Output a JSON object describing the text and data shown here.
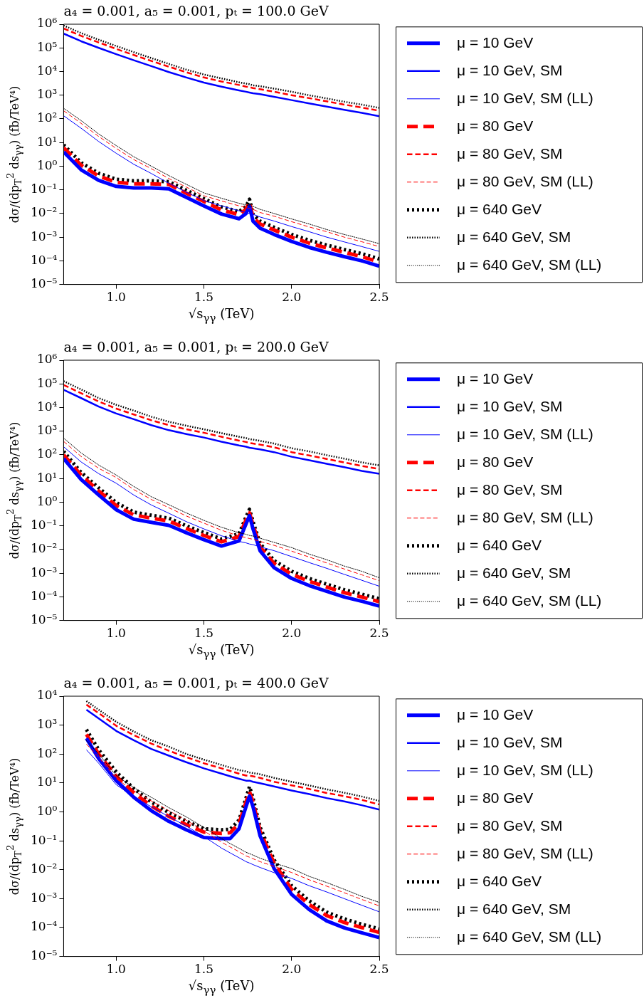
{
  "chart_data": [
    {
      "type": "line",
      "title": "a₄ = 0.001, a₅ = 0.001, pₜ = 100.0 GeV",
      "xlabel": "√s$_{γγ}$ (TeV)",
      "ylabel": "dσ/(dp$_{T}$$^{2}$ ds$_{γγ}$) (fb/TeV⁴)",
      "log": "y",
      "legend": "right",
      "marker": "none",
      "xlim": [
        0.7,
        2.5
      ],
      "xticks": [
        {
          "value": 1,
          "label": "1.0"
        },
        {
          "value": 1.5,
          "label": "1.5"
        },
        {
          "value": 2,
          "label": "2.0"
        },
        {
          "value": 2.5,
          "label": "2.5"
        }
      ],
      "ylim": [
        1e-05,
        1000000.0
      ],
      "yticks": [
        {
          "value": 1e-05,
          "label": "10⁻⁵"
        },
        {
          "value": 0.0001,
          "label": "10⁻⁴"
        },
        {
          "value": 0.001,
          "label": "10⁻³"
        },
        {
          "value": 0.01,
          "label": "10⁻²"
        },
        {
          "value": 0.1,
          "label": "10⁻¹"
        },
        {
          "value": 1,
          "label": "10⁰"
        },
        {
          "value": 10,
          "label": "10¹"
        },
        {
          "value": 100,
          "label": "10²"
        },
        {
          "value": 1000,
          "label": "10³"
        },
        {
          "value": 10000,
          "label": "10⁴"
        },
        {
          "value": 100000,
          "label": "10⁵"
        },
        {
          "value": 1000000,
          "label": "10⁶"
        }
      ],
      "x": [
        0.7,
        0.8,
        0.9,
        1.0,
        1.1,
        1.2,
        1.3,
        1.4,
        1.5,
        1.6,
        1.7,
        1.74,
        1.76,
        1.78,
        1.82,
        1.9,
        2.0,
        2.1,
        2.2,
        2.3,
        2.4,
        2.5
      ],
      "series": [
        {
          "name": "μ = 10 GeV",
          "color": "#0000ff",
          "line_style": "solid",
          "values": [
            4,
            0.7,
            0.25,
            0.14,
            0.12,
            0.12,
            0.11,
            0.048,
            0.021,
            0.0095,
            0.006,
            0.01,
            0.02,
            0.0047,
            0.0024,
            0.0013,
            0.00066,
            0.00037,
            0.00023,
            0.00015,
            0.0001,
            5.9e-05
          ]
        },
        {
          "name": "μ = 10 GeV, SM",
          "color": "#0000ff",
          "line_style": "solid",
          "values": [
            400000.0,
            190000.0,
            100000.0,
            54000.0,
            30000.0,
            17000.0,
            9500.0,
            5600.0,
            3400.0,
            2300.0,
            1600.0,
            1400.0,
            1300.0,
            1200.0,
            1100.0,
            850,
            620,
            450,
            330,
            240,
            180,
            130
          ]
        },
        {
          "name": "μ = 10 GeV, SM (LL)",
          "color": "#0000ff",
          "line_style": "solid",
          "values": [
            135,
            40,
            11,
            3.5,
            1.2,
            0.49,
            0.19,
            0.079,
            0.035,
            0.021,
            0.013,
            0.011,
            0.01,
            0.0093,
            0.0071,
            0.0048,
            0.0028,
            0.0017,
            0.001,
            0.00063,
            0.0004,
            0.00025
          ]
        },
        {
          "name": "μ = 80 GeV",
          "color": "#ff0000",
          "line_style": "dashed",
          "values": [
            6,
            1.1,
            0.38,
            0.21,
            0.18,
            0.18,
            0.17,
            0.072,
            0.032,
            0.014,
            0.009,
            0.015,
            0.03,
            0.007,
            0.0036,
            0.002,
            0.001,
            0.00056,
            0.00035,
            0.00023,
            0.00015,
            8.9e-05
          ]
        },
        {
          "name": "μ = 80 GeV, SM",
          "color": "#ff0000",
          "line_style": "dashed",
          "values": [
            660000.0,
            320000.0,
            170000.0,
            90000.0,
            50000.0,
            28000.0,
            16000.0,
            9300.0,
            5600.0,
            3800.0,
            2700.0,
            2300.0,
            2200.0,
            2000.0,
            1800.0,
            1400.0,
            1000.0,
            750,
            550,
            400,
            300,
            220
          ]
        },
        {
          "name": "μ = 80 GeV, SM (LL)",
          "color": "#ff0000",
          "line_style": "dashed",
          "values": [
            220,
            64,
            18,
            5.6,
            1.9,
            0.78,
            0.3,
            0.13,
            0.056,
            0.034,
            0.021,
            0.018,
            0.016,
            0.015,
            0.011,
            0.0077,
            0.0045,
            0.0027,
            0.0017,
            0.001,
            0.00064,
            0.0004
          ]
        },
        {
          "name": "μ = 640 GeV",
          "color": "#000000",
          "line_style": "dotted",
          "values": [
            8,
            1.4,
            0.5,
            0.28,
            0.24,
            0.24,
            0.22,
            0.096,
            0.042,
            0.019,
            0.012,
            0.02,
            0.04,
            0.0094,
            0.0048,
            0.0026,
            0.0013,
            0.00074,
            0.00046,
            0.0003,
            0.0002,
            0.00012
          ]
        },
        {
          "name": "μ = 640 GeV, SM",
          "color": "#000000",
          "line_style": "dotted",
          "values": [
            880000.0,
            420000.0,
            220000.0,
            120000.0,
            66000.0,
            37000.0,
            21000.0,
            12000.0,
            7500.0,
            5100.0,
            3500.0,
            3100.0,
            2900.0,
            2600.0,
            2400.0,
            1900.0,
            1400.0,
            990,
            730,
            530,
            400,
            290
          ]
        },
        {
          "name": "μ = 640 GeV, SM (LL)",
          "color": "#000000",
          "line_style": "dotted",
          "values": [
            280,
            84,
            23,
            7.4,
            2.5,
            1.0,
            0.4,
            0.17,
            0.074,
            0.044,
            0.027,
            0.023,
            0.021,
            0.02,
            0.015,
            0.01,
            0.0059,
            0.0036,
            0.0021,
            0.0013,
            0.00084,
            0.00053
          ]
        }
      ]
    },
    {
      "type": "line",
      "title": "a₄ = 0.001, a₅ = 0.001, pₜ = 200.0 GeV",
      "xlabel": "√s$_{γγ}$ (TeV)",
      "ylabel": "dσ/(dp$_{T}$$^{2}$ ds$_{γγ}$) (fb/TeV⁴)",
      "log": "y",
      "legend": "right",
      "marker": "none",
      "xlim": [
        0.7,
        2.5
      ],
      "xticks": [
        {
          "value": 1,
          "label": "1.0"
        },
        {
          "value": 1.5,
          "label": "1.5"
        },
        {
          "value": 2,
          "label": "2.0"
        },
        {
          "value": 2.5,
          "label": "2.5"
        }
      ],
      "ylim": [
        1e-05,
        1000000.0
      ],
      "yticks": [
        {
          "value": 1e-05,
          "label": "10⁻⁵"
        },
        {
          "value": 0.0001,
          "label": "10⁻⁴"
        },
        {
          "value": 0.001,
          "label": "10⁻³"
        },
        {
          "value": 0.01,
          "label": "10⁻²"
        },
        {
          "value": 0.1,
          "label": "10⁻¹"
        },
        {
          "value": 1,
          "label": "10⁰"
        },
        {
          "value": 10,
          "label": "10¹"
        },
        {
          "value": 100,
          "label": "10²"
        },
        {
          "value": 1000,
          "label": "10³"
        },
        {
          "value": 10000,
          "label": "10⁴"
        },
        {
          "value": 100000,
          "label": "10⁵"
        },
        {
          "value": 1000000,
          "label": "10⁶"
        }
      ],
      "x": [
        0.7,
        0.8,
        0.9,
        1.0,
        1.1,
        1.2,
        1.3,
        1.4,
        1.5,
        1.6,
        1.7,
        1.74,
        1.76,
        1.78,
        1.82,
        1.9,
        2.0,
        2.1,
        2.2,
        2.3,
        2.4,
        2.5
      ],
      "series": [
        {
          "name": "μ = 10 GeV",
          "color": "#0000ff",
          "line_style": "solid",
          "values": [
            70,
            9,
            2,
            0.48,
            0.19,
            0.14,
            0.105,
            0.051,
            0.026,
            0.014,
            0.023,
            0.12,
            0.27,
            0.074,
            0.0089,
            0.0017,
            0.0006,
            0.0003,
            0.00017,
            9.8e-05,
            6.5e-05,
            4.1e-05
          ]
        },
        {
          "name": "μ = 10 GeV, SM",
          "color": "#0000ff",
          "line_style": "solid",
          "values": [
            56000.0,
            25000.0,
            11000.0,
            5600.0,
            3200.0,
            1800.0,
            1100.0,
            760,
            540,
            360,
            250,
            220,
            200,
            190,
            170,
            130,
            83,
            59,
            42,
            30,
            21,
            16
          ]
        },
        {
          "name": "μ = 10 GeV, SM (LL)",
          "color": "#0000ff",
          "line_style": "solid",
          "values": [
            220,
            50,
            16,
            6.3,
            2.0,
            0.76,
            0.34,
            0.15,
            0.074,
            0.038,
            0.022,
            0.019,
            0.017,
            0.016,
            0.013,
            0.0089,
            0.005,
            0.0028,
            0.0016,
            0.00089,
            0.0005,
            0.00028
          ]
        },
        {
          "name": "μ = 80 GeV",
          "color": "#ff0000",
          "line_style": "dashed",
          "values": [
            100,
            14,
            3,
            0.72,
            0.29,
            0.21,
            0.16,
            0.077,
            0.039,
            0.021,
            0.035,
            0.18,
            0.35,
            0.11,
            0.013,
            0.0026,
            0.0009,
            0.00045,
            0.00026,
            0.00015,
            9.8e-05,
            6.2e-05
          ]
        },
        {
          "name": "μ = 80 GeV, SM",
          "color": "#ff0000",
          "line_style": "dashed",
          "values": [
            90000.0,
            40000.0,
            18000.0,
            9000.0,
            5100.0,
            2900.0,
            1800.0,
            1200.0,
            860,
            580,
            400,
            350,
            320,
            300,
            270,
            210,
            130,
            94,
            67,
            48,
            34,
            25
          ]
        },
        {
          "name": "μ = 80 GeV, SM (LL)",
          "color": "#ff0000",
          "line_style": "dashed",
          "values": [
            370,
            85,
            27,
            11,
            3.4,
            1.3,
            0.58,
            0.26,
            0.13,
            0.065,
            0.037,
            0.032,
            0.029,
            0.027,
            0.022,
            0.015,
            0.0085,
            0.0048,
            0.0027,
            0.0015,
            0.00085,
            0.00048
          ]
        },
        {
          "name": "μ = 640 GeV",
          "color": "#000000",
          "line_style": "dotted",
          "values": [
            140,
            18,
            4,
            0.96,
            0.38,
            0.28,
            0.21,
            0.1,
            0.052,
            0.028,
            0.046,
            0.24,
            0.5,
            0.15,
            0.018,
            0.0034,
            0.0012,
            0.0006,
            0.00034,
            0.0002,
            0.00013,
            8.2e-05
          ]
        },
        {
          "name": "μ = 640 GeV, SM",
          "color": "#000000",
          "line_style": "dotted",
          "values": [
            130000.0,
            58000.0,
            25000.0,
            13000.0,
            7400.0,
            4100.0,
            2500.0,
            1700.0,
            1200.0,
            830,
            580,
            510,
            460,
            440,
            390,
            300,
            190,
            140,
            97,
            69,
            48,
            36
          ]
        },
        {
          "name": "μ = 640 GeV, SM (LL)",
          "color": "#000000",
          "line_style": "dotted",
          "values": [
            510,
            120,
            37,
            14,
            4.6,
            1.7,
            0.78,
            0.35,
            0.17,
            0.087,
            0.051,
            0.044,
            0.039,
            0.037,
            0.03,
            0.02,
            0.012,
            0.0064,
            0.0037,
            0.002,
            0.0012,
            0.00064
          ]
        }
      ]
    },
    {
      "type": "line",
      "title": "a₄ = 0.001, a₅ = 0.001, pₜ = 400.0 GeV",
      "xlabel": "√s$_{γγ}$ (TeV)",
      "ylabel": "dσ/(dp$_{T}$$^{2}$ ds$_{γγ}$) (fb/TeV⁴)",
      "log": "y",
      "legend": "right",
      "marker": "none",
      "xlim": [
        0.7,
        2.5
      ],
      "xticks": [
        {
          "value": 1,
          "label": "1.0"
        },
        {
          "value": 1.5,
          "label": "1.5"
        },
        {
          "value": 2,
          "label": "2.0"
        },
        {
          "value": 2.5,
          "label": "2.5"
        }
      ],
      "ylim": [
        1e-05,
        10000.0
      ],
      "yticks": [
        {
          "value": 1e-05,
          "label": "10⁻⁵"
        },
        {
          "value": 0.0001,
          "label": "10⁻⁴"
        },
        {
          "value": 0.001,
          "label": "10⁻³"
        },
        {
          "value": 0.01,
          "label": "10⁻²"
        },
        {
          "value": 0.1,
          "label": "10⁻¹"
        },
        {
          "value": 1,
          "label": "10⁰"
        },
        {
          "value": 10,
          "label": "10¹"
        },
        {
          "value": 100,
          "label": "10²"
        },
        {
          "value": 1000,
          "label": "10³"
        },
        {
          "value": 10000,
          "label": "10⁴"
        }
      ],
      "x": [
        0.83,
        0.9,
        1.0,
        1.1,
        1.2,
        1.3,
        1.4,
        1.5,
        1.6,
        1.65,
        1.7,
        1.74,
        1.76,
        1.78,
        1.82,
        1.9,
        2.0,
        2.1,
        2.2,
        2.3,
        2.4,
        2.5
      ],
      "series": [
        {
          "name": "μ = 10 GeV",
          "color": "#0000ff",
          "line_style": "solid",
          "values": [
            350,
            69,
            12,
            3.2,
            1.1,
            0.47,
            0.24,
            0.13,
            0.12,
            0.12,
            0.26,
            1.5,
            3.5,
            1.5,
            0.15,
            0.011,
            0.0014,
            0.00042,
            0.00017,
            9.8e-05,
            6.6e-05,
            4.5e-05
          ]
        },
        {
          "name": "μ = 10 GeV, SM",
          "color": "#0000ff",
          "line_style": "solid",
          "values": [
            3400.0,
            1700.0,
            630,
            300,
            150,
            88,
            52,
            32,
            21,
            17,
            14,
            12,
            12,
            11,
            9.8,
            7.6,
            5.5,
            4.1,
            3.0,
            2.3,
            1.7,
            1.2
          ]
        },
        {
          "name": "μ = 10 GeV, SM (LL)",
          "color": "#0000ff",
          "line_style": "solid",
          "values": [
            140,
            48,
            8.7,
            3.3,
            1.5,
            0.68,
            0.32,
            0.14,
            0.056,
            0.038,
            0.026,
            0.019,
            0.017,
            0.015,
            0.012,
            0.0079,
            0.005,
            0.0028,
            0.0017,
            0.001,
            0.00059,
            0.00035
          ]
        },
        {
          "name": "μ = 80 GeV",
          "color": "#ff0000",
          "line_style": "dashed",
          "values": [
            480,
            100,
            17,
            4.6,
            1.6,
            0.7,
            0.36,
            0.2,
            0.18,
            0.19,
            0.4,
            2.2,
            5,
            2.2,
            0.22,
            0.017,
            0.0021,
            0.00063,
            0.00026,
            0.00015,
            0.0001,
            6.8e-05
          ]
        },
        {
          "name": "μ = 80 GeV, SM",
          "color": "#ff0000",
          "line_style": "dashed",
          "values": [
            5100.0,
            2600.0,
            950,
            450,
            230,
            130,
            78,
            48,
            32,
            26,
            21,
            18,
            18,
            17,
            15,
            11,
            8.3,
            6.2,
            4.5,
            3.5,
            2.6,
            1.8
          ]
        },
        {
          "name": "μ = 80 GeV, SM (LL)",
          "color": "#ff0000",
          "line_style": "dashed",
          "values": [
            220,
            77,
            14,
            5.3,
            2.4,
            1.1,
            0.51,
            0.22,
            0.09,
            0.061,
            0.042,
            0.03,
            0.027,
            0.024,
            0.019,
            0.013,
            0.008,
            0.0045,
            0.0027,
            0.0016,
            0.00094,
            0.00056
          ]
        },
        {
          "name": "μ = 640 GeV",
          "color": "#000000",
          "line_style": "dotted",
          "values": [
            700,
            140,
            24,
            6.4,
            2.2,
            0.94,
            0.48,
            0.26,
            0.24,
            0.25,
            0.52,
            3,
            7.5,
            3,
            0.3,
            0.022,
            0.0028,
            0.00084,
            0.00034,
            0.0002,
            0.00013,
            9e-05
          ]
        },
        {
          "name": "μ = 640 GeV, SM",
          "color": "#000000",
          "line_style": "dotted",
          "values": [
            6800.0,
            3400.0,
            1300.0,
            600,
            300,
            180,
            100,
            64,
            42,
            34,
            28,
            25,
            23,
            22,
            20,
            15,
            11,
            8.2,
            6.0,
            4.6,
            3.4,
            2.4
          ]
        },
        {
          "name": "μ = 640 GeV, SM (LL)",
          "color": "#000000",
          "line_style": "dotted",
          "values": [
            290,
            100,
            18,
            6.9,
            3.2,
            1.4,
            0.67,
            0.29,
            0.12,
            0.08,
            0.055,
            0.04,
            0.036,
            0.032,
            0.025,
            0.017,
            0.011,
            0.0059,
            0.0036,
            0.0021,
            0.0012,
            0.00074
          ]
        }
      ]
    }
  ]
}
